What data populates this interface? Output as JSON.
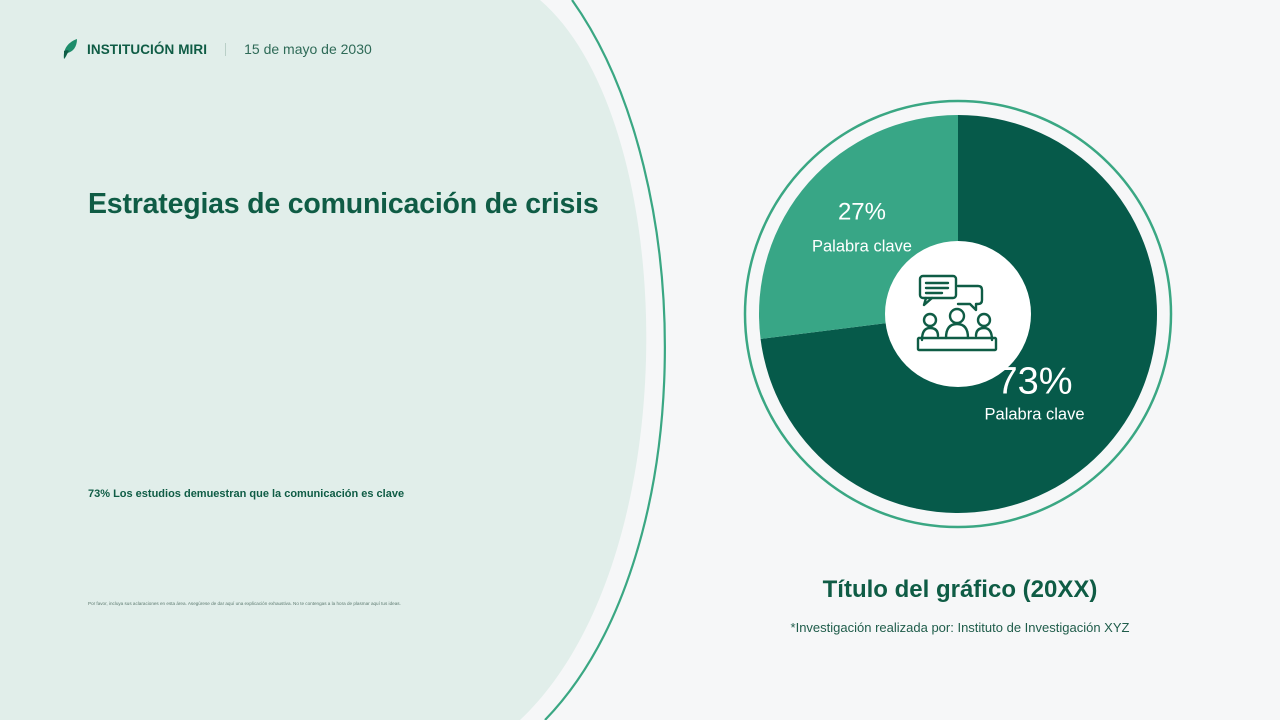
{
  "header": {
    "brand": "INSTITUCIÓN MIRI",
    "date": "15 de mayo de 2030"
  },
  "main": {
    "title": "Estrategias de comunicación de crisis",
    "stat_text": "73% Los estudios demuestran que la comunicación es clave",
    "note": "Por favor, incluya sus aclaraciones en esta área. Asegúrese de dar aquí una explicación exhaustiva. No te contengas a la hora de plasmar aquí tus ideas."
  },
  "colors": {
    "accent": "#0f5c45",
    "panel": "#e1eeea",
    "ring": "#3aa783",
    "slice_major": "#065a4a",
    "slice_minor": "#38a686"
  },
  "center_icon": "team-discussion-icon",
  "chart_data": {
    "type": "pie",
    "style": "donut",
    "title": "Título del gráfico (20XX)",
    "source": "*Investigación realizada por: Instituto de Investigación XYZ",
    "slices": [
      {
        "label": "Palabra clave",
        "value": 73,
        "display": "73%",
        "color": "#065a4a"
      },
      {
        "label": "Palabra clave",
        "value": 27,
        "display": "27%",
        "color": "#38a686"
      }
    ]
  }
}
